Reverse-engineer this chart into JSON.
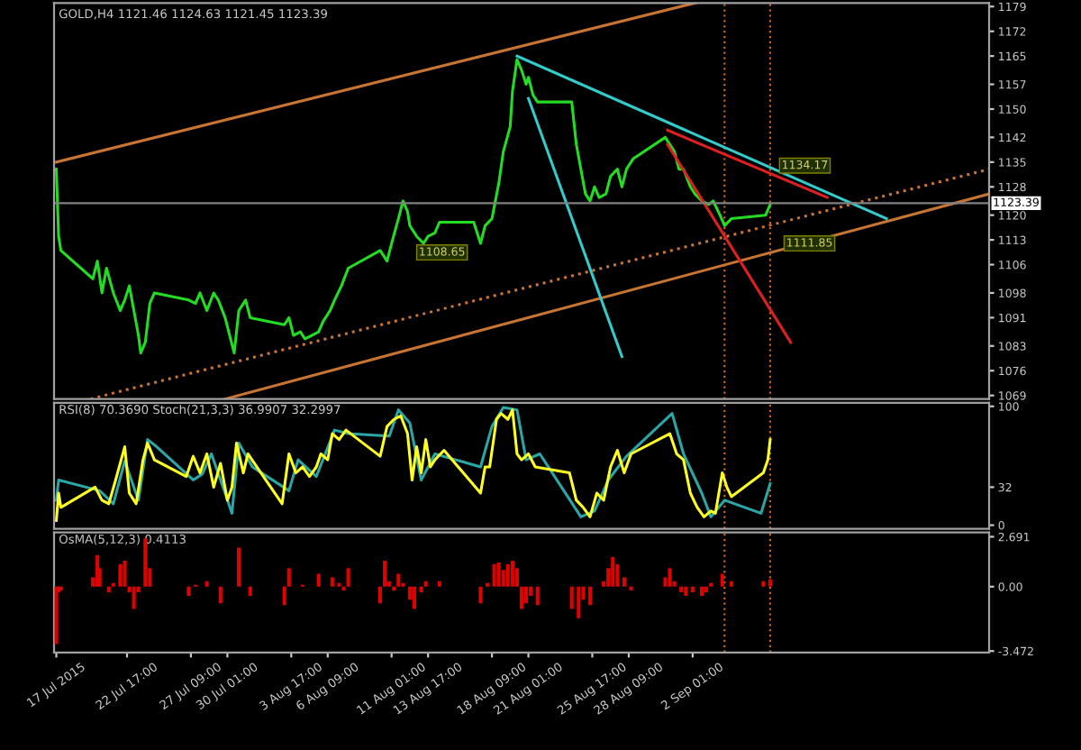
{
  "chart_data": [
    {
      "type": "line",
      "title": "GOLD,H4 1121.46 1124.63 1121.45 1123.39",
      "xlim": [
        "2015-07-17T09:00",
        "2015-09-23T17:00"
      ],
      "ylim": [
        1068,
        1180
      ],
      "tick_labels": "y",
      "yticks": [
        1179,
        1172,
        1165,
        1157,
        1150,
        1142,
        1135,
        1128,
        1120,
        1113,
        1106,
        1098,
        1091,
        1083,
        1076,
        1069
      ],
      "series": [
        {
          "color": "#22dd22",
          "line_style": "solid",
          "x": [
            "2015-07-17T13:00",
            "2015-07-17T17:00",
            "2015-07-17T21:00",
            "2015-07-20T05:00",
            "2015-07-20T13:00",
            "2015-07-20T21:00",
            "2015-07-21T05:00",
            "2015-07-21T17:00",
            "2015-07-22T05:00",
            "2015-07-22T13:00",
            "2015-07-22T21:00",
            "2015-07-23T05:00",
            "2015-07-23T13:00",
            "2015-07-23T17:00",
            "2015-07-24T01:00",
            "2015-07-24T09:00",
            "2015-07-24T17:00",
            "2015-07-27T05:00",
            "2015-07-27T17:00",
            "2015-07-28T01:00",
            "2015-07-28T13:00",
            "2015-07-29T01:00",
            "2015-07-29T09:00",
            "2015-07-29T21:00",
            "2015-07-30T05:00",
            "2015-07-30T13:00",
            "2015-07-30T21:00",
            "2015-07-31T09:00",
            "2015-07-31T17:00",
            "2015-08-03T05:00",
            "2015-08-03T13:00",
            "2015-08-03T21:00",
            "2015-08-04T09:00",
            "2015-08-04T17:00",
            "2015-08-05T05:00",
            "2015-08-05T17:00",
            "2015-08-06T01:00",
            "2015-08-06T13:00",
            "2015-08-06T21:00",
            "2015-08-07T09:00",
            "2015-08-07T21:00",
            "2015-08-10T05:00",
            "2015-08-10T17:00",
            "2015-08-11T01:00",
            "2015-08-11T13:00",
            "2015-08-11T21:00",
            "2015-08-12T05:00",
            "2015-08-12T09:00",
            "2015-08-12T21:00",
            "2015-08-13T09:00",
            "2015-08-13T17:00",
            "2015-08-14T05:00",
            "2015-08-14T13:00",
            "2015-08-17T01:00",
            "2015-08-17T13:00",
            "2015-08-17T21:00",
            "2015-08-18T09:00",
            "2015-08-18T21:00",
            "2015-08-19T05:00",
            "2015-08-19T17:00",
            "2015-08-19T21:00",
            "2015-08-20T05:00",
            "2015-08-20T13:00",
            "2015-08-20T21:00",
            "2015-08-21T01:00",
            "2015-08-21T09:00",
            "2015-08-21T17:00",
            "2015-08-24T05:00",
            "2015-08-24T13:00",
            "2015-08-24T21:00",
            "2015-08-25T05:00",
            "2015-08-25T13:00",
            "2015-08-25T21:00",
            "2015-08-26T05:00",
            "2015-08-26T17:00",
            "2015-08-27T01:00",
            "2015-08-27T13:00",
            "2015-08-27T21:00",
            "2015-08-28T05:00",
            "2015-08-28T17:00",
            "2015-08-31T01:00",
            "2015-08-31T09:00",
            "2015-08-31T17:00",
            "2015-09-01T01:00",
            "2015-09-01T09:00",
            "2015-09-01T21:00",
            "2015-09-02T05:00",
            "2015-09-02T17:00",
            "2015-09-03T05:00",
            "2015-09-03T13:00",
            "2015-09-04T01:00",
            "2015-09-04T09:00",
            "2015-09-04T21:00",
            "2015-09-07T09:00",
            "2015-09-07T17:00"
          ],
          "values": [
            1133,
            1114,
            1110,
            1102,
            1107,
            1098,
            1105,
            1098,
            1093,
            1096,
            1100,
            1093,
            1086,
            1081,
            1084,
            1095,
            1098,
            1096,
            1095,
            1098,
            1093,
            1098,
            1096,
            1091,
            1086,
            1081,
            1093,
            1096,
            1091,
            1089,
            1091,
            1086,
            1087,
            1085,
            1086,
            1087,
            1090,
            1093,
            1096,
            1100,
            1105,
            1110,
            1107,
            1112,
            1119,
            1124,
            1121,
            1117,
            1114,
            1112,
            1114,
            1115,
            1118,
            1118,
            1112,
            1117,
            1119,
            1129,
            1138,
            1145,
            1155,
            1164,
            1161,
            1157,
            1159,
            1154,
            1152,
            1152,
            1140,
            1133,
            1126,
            1124,
            1128,
            1125,
            1126,
            1131,
            1133,
            1128,
            1133,
            1136,
            1142,
            1140,
            1138,
            1133,
            1133,
            1128,
            1126,
            1124,
            1123,
            1124,
            1120,
            1117,
            1119,
            1120,
            1123
          ]
        },
        {
          "color": "#c87533",
          "line_style": "solid",
          "x": [
            "2015-07-17T13:00",
            "2015-09-02T05:00"
          ],
          "values": [
            1135,
            1180
          ]
        },
        {
          "color": "#c87533",
          "line_style": "solid",
          "x": [
            "2015-07-29T21:00",
            "2015-09-23T17:00"
          ],
          "values": [
            1068,
            1126
          ]
        },
        {
          "color": "#c87533",
          "line_style": "dotted",
          "x": [
            "2015-07-20T01:00",
            "2015-09-23T17:00"
          ],
          "values": [
            1068,
            1133
          ]
        },
        {
          "color": "#33cccc",
          "line_style": "solid",
          "x": [
            "2015-08-20T05:00",
            "2015-09-16T05:00"
          ],
          "values": [
            1165,
            1119
          ]
        },
        {
          "color": "#33cccc",
          "line_style": "solid",
          "x": [
            "2015-08-21T01:00",
            "2015-08-27T21:00"
          ],
          "values": [
            1153,
            1080
          ]
        },
        {
          "color": "#e02020",
          "line_style": "solid",
          "x": [
            "2015-08-31T05:00",
            "2015-09-11T21:00"
          ],
          "values": [
            1144,
            1125
          ]
        },
        {
          "color": "#e02020",
          "line_style": "solid",
          "x": [
            "2015-08-31T05:00",
            "2015-09-09T05:00"
          ],
          "values": [
            1140,
            1084
          ]
        }
      ],
      "ref_lines": [
        {
          "axis": "y",
          "value": 1123.39,
          "label": "1123.39",
          "color": "#808080",
          "line_style": "solid"
        },
        {
          "axis": "x",
          "value": "2015-09-04T09:00",
          "color": "#c8641e",
          "line_style": "dotted"
        },
        {
          "axis": "x",
          "value": "2015-09-07T17:00",
          "color": "#c8641e",
          "line_style": "dotted"
        }
      ],
      "annotations": [
        {
          "text": "1134.17",
          "x": "2015-09-08T13:00",
          "y": 1134
        },
        {
          "text": "1111.85",
          "x": "2015-09-08T21:00",
          "y": 1112
        },
        "1108.65"
      ]
    },
    {
      "type": "line",
      "title": "RSI(8) 70.3690 Stoch(21,3,3) 36.9907 32.2997",
      "xlim": [
        "2015-07-17T09:00",
        "2015-09-23T17:00"
      ],
      "ylim": [
        -3,
        103
      ],
      "yticks": [
        100,
        32,
        0
      ],
      "tick_labels": "y",
      "series": [
        {
          "color": "#2aa6a6",
          "line_style": "solid",
          "x": [
            "2015-07-17T13:00",
            "2015-07-17T17:00",
            "2015-07-20T17:00",
            "2015-07-21T17:00",
            "2015-07-22T13:00",
            "2015-07-23T13:00",
            "2015-07-24T05:00",
            "2015-07-24T21:00",
            "2015-07-27T13:00",
            "2015-07-28T05:00",
            "2015-07-28T21:00",
            "2015-07-29T21:00",
            "2015-07-30T09:00",
            "2015-07-30T21:00",
            "2015-07-31T21:00",
            "2015-08-03T13:00",
            "2015-08-04T05:00",
            "2015-08-05T13:00",
            "2015-08-06T21:00",
            "2015-08-07T21:00",
            "2015-08-10T21:00",
            "2015-08-11T13:00",
            "2015-08-12T09:00",
            "2015-08-13T05:00",
            "2015-08-14T05:00",
            "2015-08-17T13:00",
            "2015-08-18T09:00",
            "2015-08-19T05:00",
            "2015-08-20T05:00",
            "2015-08-20T21:00",
            "2015-08-21T21:00",
            "2015-08-24T21:00",
            "2015-08-25T21:00",
            "2015-08-26T21:00",
            "2015-08-28T05:00",
            "2015-08-31T13:00",
            "2015-09-01T09:00",
            "2015-09-02T17:00",
            "2015-09-03T09:00",
            "2015-09-04T09:00",
            "2015-09-07T01:00",
            "2015-09-07T17:00"
          ],
          "values": [
            21,
            38,
            29,
            18,
            54,
            21,
            72,
            66,
            38,
            43,
            60,
            27,
            10,
            69,
            49,
            29,
            55,
            41,
            80,
            77,
            75,
            97,
            86,
            38,
            60,
            49,
            83,
            99,
            97,
            55,
            60,
            7,
            12,
            38,
            58,
            94,
            60,
            27,
            7,
            21,
            10,
            35
          ]
        },
        {
          "color": "#ffff20",
          "line_style": "solid",
          "x": [
            "2015-07-17T13:00",
            "2015-07-17T17:00",
            "2015-07-17T21:00",
            "2015-07-20T09:00",
            "2015-07-20T21:00",
            "2015-07-21T09:00",
            "2015-07-21T21:00",
            "2015-07-22T13:00",
            "2015-07-22T21:00",
            "2015-07-23T09:00",
            "2015-07-23T21:00",
            "2015-07-24T05:00",
            "2015-07-24T17:00",
            "2015-07-27T01:00",
            "2015-07-27T13:00",
            "2015-07-28T01:00",
            "2015-07-28T13:00",
            "2015-07-29T01:00",
            "2015-07-29T13:00",
            "2015-07-30T01:00",
            "2015-07-30T09:00",
            "2015-07-30T17:00",
            "2015-07-31T05:00",
            "2015-07-31T13:00",
            "2015-08-03T01:00",
            "2015-08-03T13:00",
            "2015-08-04T01:00",
            "2015-08-04T13:00",
            "2015-08-05T01:00",
            "2015-08-05T13:00",
            "2015-08-05T21:00",
            "2015-08-06T09:00",
            "2015-08-06T17:00",
            "2015-08-07T05:00",
            "2015-08-07T17:00",
            "2015-08-10T05:00",
            "2015-08-10T17:00",
            "2015-08-11T05:00",
            "2015-08-11T17:00",
            "2015-08-12T05:00",
            "2015-08-12T13:00",
            "2015-08-12T21:00",
            "2015-08-13T05:00",
            "2015-08-13T13:00",
            "2015-08-13T21:00",
            "2015-08-14T05:00",
            "2015-08-14T21:00",
            "2015-08-17T13:00",
            "2015-08-17T21:00",
            "2015-08-18T05:00",
            "2015-08-18T17:00",
            "2015-08-19T01:00",
            "2015-08-19T13:00",
            "2015-08-19T21:00",
            "2015-08-20T05:00",
            "2015-08-20T13:00",
            "2015-08-21T01:00",
            "2015-08-21T13:00",
            "2015-08-24T01:00",
            "2015-08-24T13:00",
            "2015-08-25T01:00",
            "2015-08-25T13:00",
            "2015-08-26T01:00",
            "2015-08-26T13:00",
            "2015-08-27T01:00",
            "2015-08-27T13:00",
            "2015-08-28T01:00",
            "2015-08-28T13:00",
            "2015-08-31T09:00",
            "2015-08-31T21:00",
            "2015-09-01T09:00",
            "2015-09-01T21:00",
            "2015-09-02T09:00",
            "2015-09-02T21:00",
            "2015-09-03T09:00",
            "2015-09-03T17:00",
            "2015-09-04T05:00",
            "2015-09-04T13:00",
            "2015-09-04T21:00",
            "2015-09-07T05:00",
            "2015-09-07T13:00",
            "2015-09-07T17:00"
          ],
          "values": [
            4,
            27,
            15,
            32,
            21,
            18,
            38,
            66,
            27,
            18,
            55,
            69,
            55,
            41,
            58,
            44,
            60,
            32,
            52,
            21,
            32,
            69,
            44,
            60,
            18,
            60,
            44,
            49,
            41,
            49,
            60,
            55,
            77,
            72,
            80,
            58,
            83,
            89,
            92,
            77,
            38,
            66,
            44,
            72,
            49,
            55,
            63,
            27,
            49,
            49,
            89,
            94,
            89,
            97,
            60,
            55,
            60,
            49,
            44,
            21,
            15,
            7,
            27,
            21,
            49,
            63,
            44,
            60,
            77,
            60,
            55,
            27,
            15,
            7,
            12,
            10,
            44,
            32,
            24,
            44,
            55,
            72
          ]
        }
      ],
      "ref_lines": [
        {
          "axis": "x",
          "value": "2015-09-04T09:00",
          "color": "#c8641e",
          "line_style": "dotted"
        },
        {
          "axis": "x",
          "value": "2015-09-07T17:00",
          "color": "#c8641e",
          "line_style": "dotted"
        }
      ]
    },
    {
      "type": "bar",
      "title": "OsMA(5,12,3) 0.4113",
      "xlim": [
        "2015-07-17T09:00",
        "2015-09-23T17:00"
      ],
      "ylim": [
        -3.55,
        2.92
      ],
      "yticks": [
        {
          "value": 2.691,
          "label": "2.691"
        },
        {
          "value": 0,
          "label": "0.00"
        },
        {
          "value": -3.472,
          "label": "-3.472"
        }
      ],
      "xticks": [
        {
          "value": "2015-07-17T13:00",
          "label": "17 Jul 2015"
        },
        {
          "value": "2015-07-22T17:00",
          "label": "22 Jul 17:00"
        },
        {
          "value": "2015-07-27T09:00",
          "label": "27 Jul 09:00"
        },
        {
          "value": "2015-07-30T01:00",
          "label": "30 Jul 01:00"
        },
        {
          "value": "2015-08-03T17:00",
          "label": "3 Aug 17:00"
        },
        {
          "value": "2015-08-06T09:00",
          "label": "6 Aug 09:00"
        },
        {
          "value": "2015-08-11T01:00",
          "label": "11 Aug 01:00"
        },
        {
          "value": "2015-08-13T17:00",
          "label": "13 Aug 17:00"
        },
        {
          "value": "2015-08-18T09:00",
          "label": "18 Aug 09:00"
        },
        {
          "value": "2015-08-21T01:00",
          "label": "21 Aug 01:00"
        },
        {
          "value": "2015-08-25T17:00",
          "label": "25 Aug 17:00"
        },
        {
          "value": "2015-08-28T09:00",
          "label": "28 Aug 09:00"
        },
        {
          "value": "2015-09-02T01:00",
          "label": "2 Sep 01:00"
        }
      ],
      "series": [
        {
          "color": "#e00000",
          "x": [
            "2015-07-17T13:00",
            "2015-07-17T17:00",
            "2015-07-17T21:00",
            "2015-07-20T05:00",
            "2015-07-20T13:00",
            "2015-07-20T17:00",
            "2015-07-21T01:00",
            "2015-07-21T09:00",
            "2015-07-21T17:00",
            "2015-07-22T05:00",
            "2015-07-22T13:00",
            "2015-07-22T21:00",
            "2015-07-23T05:00",
            "2015-07-23T13:00",
            "2015-07-24T01:00",
            "2015-07-24T09:00",
            "2015-07-24T17:00",
            "2015-07-27T05:00",
            "2015-07-27T17:00",
            "2015-07-28T05:00",
            "2015-07-28T13:00",
            "2015-07-29T01:00",
            "2015-07-29T13:00",
            "2015-07-30T01:00",
            "2015-07-30T13:00",
            "2015-07-30T21:00",
            "2015-07-31T05:00",
            "2015-07-31T17:00",
            "2015-08-03T05:00",
            "2015-08-03T13:00",
            "2015-08-04T01:00",
            "2015-08-04T13:00",
            "2015-08-05T05:00",
            "2015-08-05T17:00",
            "2015-08-06T05:00",
            "2015-08-06T17:00",
            "2015-08-07T05:00",
            "2015-08-07T13:00",
            "2015-08-07T21:00",
            "2015-08-10T05:00",
            "2015-08-10T13:00",
            "2015-08-10T21:00",
            "2015-08-11T05:00",
            "2015-08-11T13:00",
            "2015-08-11T21:00",
            "2015-08-12T09:00",
            "2015-08-12T17:00",
            "2015-08-13T05:00",
            "2015-08-13T13:00",
            "2015-08-14T01:00",
            "2015-08-14T13:00",
            "2015-08-17T01:00",
            "2015-08-17T13:00",
            "2015-08-18T01:00",
            "2015-08-18T13:00",
            "2015-08-18T21:00",
            "2015-08-19T05:00",
            "2015-08-19T13:00",
            "2015-08-19T21:00",
            "2015-08-20T05:00",
            "2015-08-20T13:00",
            "2015-08-20T21:00",
            "2015-08-21T05:00",
            "2015-08-21T17:00",
            "2015-08-24T05:00",
            "2015-08-24T17:00",
            "2015-08-25T01:00",
            "2015-08-25T13:00",
            "2015-08-26T01:00",
            "2015-08-26T13:00",
            "2015-08-26T21:00",
            "2015-08-27T05:00",
            "2015-08-27T13:00",
            "2015-08-28T01:00",
            "2015-08-28T13:00",
            "2015-08-31T01:00",
            "2015-08-31T09:00",
            "2015-08-31T17:00",
            "2015-09-01T05:00",
            "2015-09-01T13:00",
            "2015-09-02T01:00",
            "2015-09-02T17:00",
            "2015-09-03T01:00",
            "2015-09-03T09:00",
            "2015-09-03T21:00",
            "2015-09-04T05:00",
            "2015-09-04T13:00",
            "2015-09-04T21:00",
            "2015-09-07T05:00",
            "2015-09-07T17:00"
          ],
          "values": [
            -3.1,
            -0.3,
            -0.2,
            0.5,
            1.7,
            1.0,
            0.0,
            -0.3,
            0.2,
            1.2,
            1.4,
            -0.3,
            -1.2,
            -0.3,
            2.6,
            1.0,
            0.0,
            -0.5,
            0.1,
            0.0,
            0.3,
            0.0,
            -0.9,
            0.0,
            0.0,
            2.1,
            0.0,
            -0.5,
            -1.0,
            1.0,
            0.0,
            0.1,
            0.0,
            0.7,
            0.0,
            0.5,
            0.2,
            -0.2,
            1.0,
            -0.9,
            1.4,
            0.3,
            -0.2,
            0.7,
            0.2,
            -0.7,
            -1.2,
            -0.3,
            0.3,
            0.0,
            0.3,
            0.0,
            -0.9,
            0.2,
            1.2,
            1.3,
            0.9,
            1.2,
            1.4,
            1.0,
            -1.2,
            -0.9,
            -0.5,
            -1.0,
            -1.2,
            -1.7,
            -0.7,
            -1.0,
            0.0,
            0.3,
            1.0,
            1.6,
            1.2,
            0.5,
            -0.2,
            0.5,
            1.0,
            0.3,
            -0.3,
            -0.5,
            -0.3,
            -0.5,
            -0.3,
            0.2,
            0.0,
            0.7,
            0.0,
            0.3,
            0.3,
            0.4
          ]
        }
      ],
      "ref_lines": [
        {
          "axis": "x",
          "value": "2015-09-04T09:00",
          "color": "#c8641e",
          "line_style": "dotted"
        },
        {
          "axis": "x",
          "value": "2015-09-07T17:00",
          "color": "#c8641e",
          "line_style": "dotted"
        }
      ]
    }
  ]
}
